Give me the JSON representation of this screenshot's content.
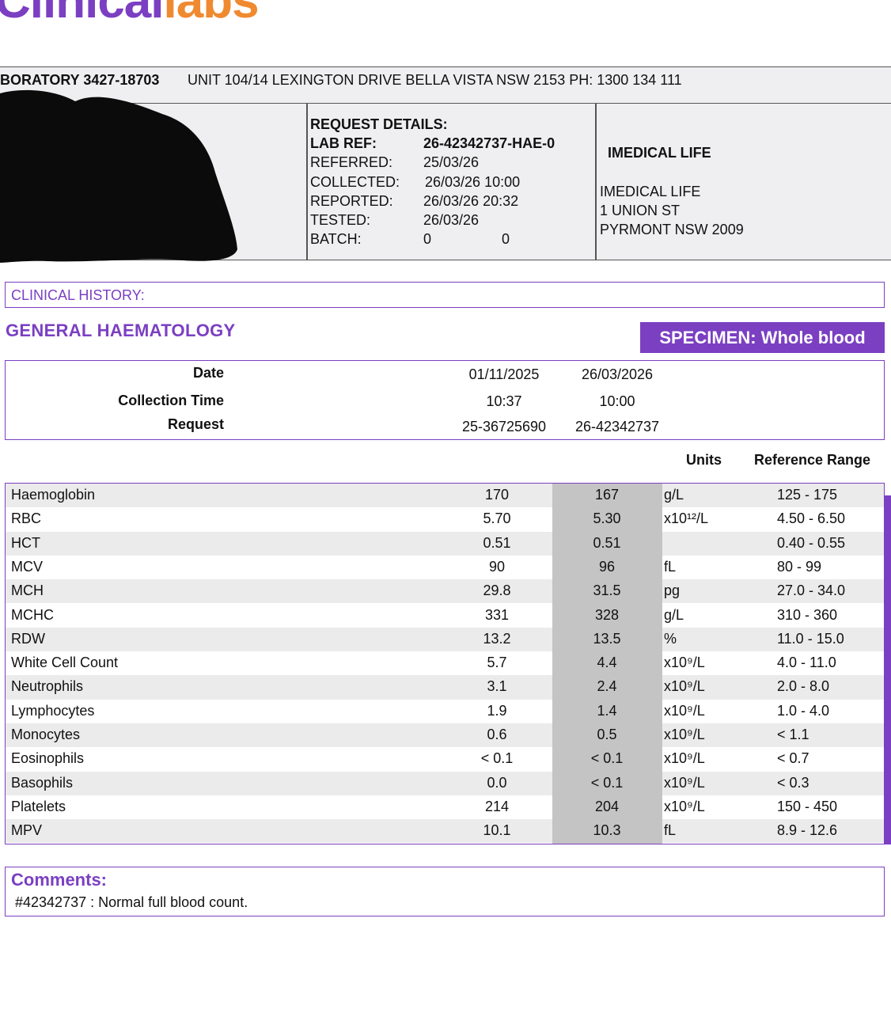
{
  "logo": {
    "part1": "Clinical",
    "part2": "labs"
  },
  "lab": {
    "id": "BORATORY 3427-18703",
    "address": "UNIT 104/14 LEXINGTON DRIVE  BELLA VISTA  NSW  2153  PH: 1300 134 111"
  },
  "request": {
    "heading": "REQUEST DETAILS:",
    "fields": [
      {
        "label": "LAB REF:",
        "value": "26-42342737-HAE-0"
      },
      {
        "label": "REFERRED:",
        "value": "25/03/26"
      },
      {
        "label": "COLLECTED:",
        "value": "26/03/26 10:00"
      },
      {
        "label": "REPORTED:",
        "value": "26/03/26 20:32"
      },
      {
        "label": "TESTED:",
        "value": "26/03/26"
      },
      {
        "label": "BATCH:",
        "value": "0",
        "value2": "0"
      }
    ]
  },
  "doctor": {
    "name": "IMEDICAL LIFE",
    "address_lines": [
      "IMEDICAL LIFE",
      "1 UNION ST",
      "PYRMONT NSW 2009"
    ]
  },
  "clinical_history": "CLINICAL HISTORY:",
  "section_title": "GENERAL HAEMATOLOGY",
  "specimen": "SPECIMEN: Whole blood",
  "collection": {
    "labels": [
      "Date",
      "Collection Time",
      "Request"
    ],
    "columns": [
      {
        "date": "01/11/2025",
        "time": "10:37",
        "request": "25-36725690"
      },
      {
        "date": "26/03/2026",
        "time": "10:00",
        "request": "26-42342737"
      }
    ]
  },
  "table_headers": {
    "units": "Units",
    "reference": "Reference Range"
  },
  "results": [
    {
      "test": "Haemoglobin",
      "v1": "170",
      "v2": "167",
      "unit": "g/L",
      "ref": "125 - 175"
    },
    {
      "test": "RBC",
      "v1": "5.70",
      "v2": "5.30",
      "unit": "x10¹²/L",
      "ref": "4.50 - 6.50"
    },
    {
      "test": "HCT",
      "v1": "0.51",
      "v2": "0.51",
      "unit": "",
      "ref": "0.40 - 0.55"
    },
    {
      "test": "MCV",
      "v1": "90",
      "v2": "96",
      "unit": "fL",
      "ref": "80 - 99"
    },
    {
      "test": "MCH",
      "v1": "29.8",
      "v2": "31.5",
      "unit": "pg",
      "ref": "27.0 - 34.0"
    },
    {
      "test": "MCHC",
      "v1": "331",
      "v2": "328",
      "unit": "g/L",
      "ref": "310 - 360"
    },
    {
      "test": "RDW",
      "v1": "13.2",
      "v2": "13.5",
      "unit": "%",
      "ref": "11.0 - 15.0"
    },
    {
      "test": "White Cell Count",
      "v1": "5.7",
      "v2": "4.4",
      "unit": "x10⁹/L",
      "ref": "4.0 - 11.0"
    },
    {
      "test": "Neutrophils",
      "v1": "3.1",
      "v2": "2.4",
      "unit": "x10⁹/L",
      "ref": "2.0 - 8.0"
    },
    {
      "test": "Lymphocytes",
      "v1": "1.9",
      "v2": "1.4",
      "unit": "x10⁹/L",
      "ref": "1.0 - 4.0"
    },
    {
      "test": "Monocytes",
      "v1": "0.6",
      "v2": "0.5",
      "unit": "x10⁹/L",
      "ref": "< 1.1"
    },
    {
      "test": "Eosinophils",
      "v1": "< 0.1",
      "v2": "< 0.1",
      "unit": "x10⁹/L",
      "ref": "< 0.7"
    },
    {
      "test": "Basophils",
      "v1": "0.0",
      "v2": "< 0.1",
      "unit": "x10⁹/L",
      "ref": "< 0.3"
    },
    {
      "test": "Platelets",
      "v1": "214",
      "v2": "204",
      "unit": "x10⁹/L",
      "ref": "150 - 450"
    },
    {
      "test": "MPV",
      "v1": "10.1",
      "v2": "10.3",
      "unit": "fL",
      "ref": "8.9 - 12.6"
    }
  ],
  "comments": {
    "title": "Comments:",
    "text": "#42342737 : Normal full blood count."
  },
  "colors": {
    "brand_purple": "#7b3fc2",
    "brand_orange": "#f08a30",
    "header_gray": "#efeff1",
    "shade_gray": "#c4c4c4"
  }
}
